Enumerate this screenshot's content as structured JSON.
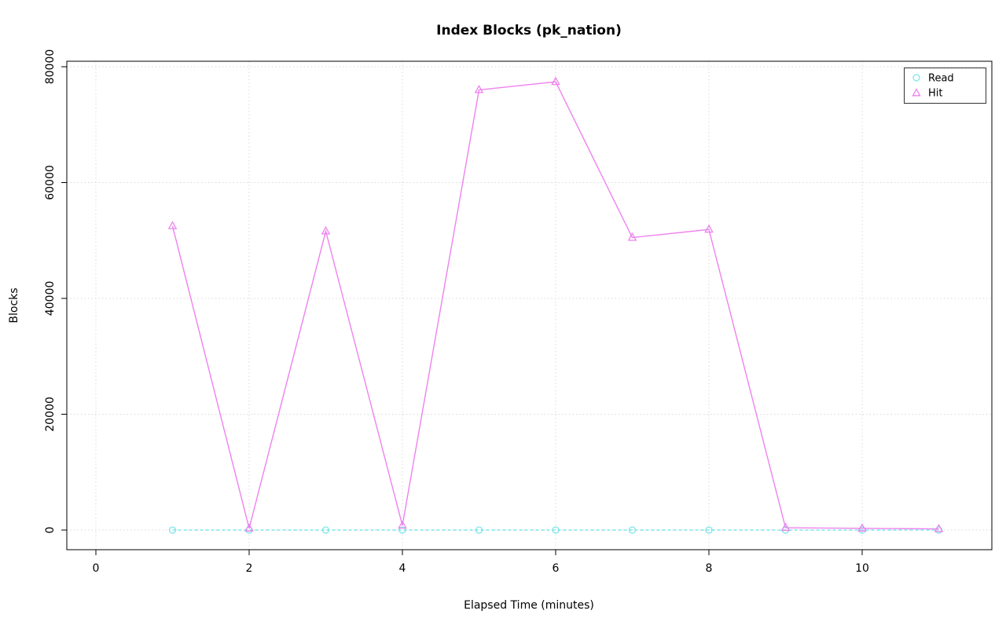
{
  "chart_data": {
    "type": "line",
    "title": "Index Blocks (pk_nation)",
    "xlabel": "Elapsed Time (minutes)",
    "ylabel": "Blocks",
    "x": [
      1,
      2,
      3,
      4,
      5,
      6,
      7,
      8,
      9,
      10,
      11
    ],
    "x_ticks": [
      0,
      2,
      4,
      6,
      8,
      10
    ],
    "y_ticks": [
      0,
      20000,
      40000,
      60000,
      80000
    ],
    "xlim": [
      0,
      11.5
    ],
    "ylim": [
      0,
      80000
    ],
    "grid": true,
    "grid_color": "#d9d9d9",
    "legend_position": "top-right",
    "series": [
      {
        "name": "Read",
        "color": "#7be6ea",
        "marker": "circle",
        "linestyle": "dashed",
        "values": [
          0,
          0,
          0,
          0,
          0,
          0,
          0,
          0,
          0,
          0,
          0
        ]
      },
      {
        "name": "Hit",
        "color": "#ee82ee",
        "marker": "triangle",
        "linestyle": "solid",
        "values": [
          52500,
          300,
          51600,
          800,
          76000,
          77400,
          50500,
          51900,
          400,
          300,
          200
        ]
      }
    ]
  }
}
